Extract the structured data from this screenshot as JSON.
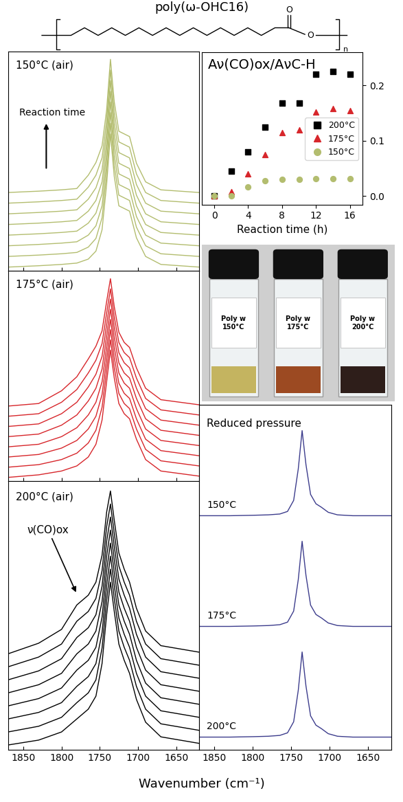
{
  "header": {
    "title": "poly(ω-OHC16)",
    "atoms": [
      "O",
      "O"
    ],
    "repeat": "n"
  },
  "figure": {
    "xlabel": "Wavenumber (cm⁻¹)"
  },
  "chart_data": [
    {
      "type": "line",
      "title": "150°C (air)",
      "annotation": "Reaction time",
      "color": "#b3bd6f",
      "x": [
        1870,
        1830,
        1800,
        1780,
        1765,
        1755,
        1747,
        1741,
        1736,
        1731,
        1725,
        1718,
        1711,
        1702,
        1690,
        1670,
        1620
      ],
      "series": [
        {
          "values": [
            0.0,
            0.01,
            0.02,
            0.03,
            0.06,
            0.12,
            0.28,
            0.62,
            1.0,
            0.68,
            0.46,
            0.44,
            0.42,
            0.22,
            0.08,
            0.02,
            0.0
          ]
        },
        {
          "values": [
            0.08,
            0.09,
            0.1,
            0.11,
            0.15,
            0.215,
            0.37,
            0.7,
            1.08,
            0.76,
            0.54,
            0.52,
            0.5,
            0.3,
            0.16,
            0.1,
            0.08
          ]
        },
        {
          "values": [
            0.16,
            0.17,
            0.18,
            0.19,
            0.24,
            0.31,
            0.46,
            0.78,
            1.16,
            0.84,
            0.62,
            0.6,
            0.58,
            0.38,
            0.24,
            0.18,
            0.16
          ]
        },
        {
          "values": [
            0.24,
            0.25,
            0.26,
            0.27,
            0.33,
            0.405,
            0.55,
            0.86,
            1.24,
            0.92,
            0.7,
            0.68,
            0.66,
            0.46,
            0.32,
            0.26,
            0.24
          ]
        },
        {
          "values": [
            0.32,
            0.33,
            0.34,
            0.35,
            0.42,
            0.5,
            0.64,
            0.94,
            1.32,
            1.0,
            0.78,
            0.76,
            0.74,
            0.54,
            0.4,
            0.34,
            0.32
          ]
        },
        {
          "values": [
            0.4,
            0.41,
            0.42,
            0.43,
            0.51,
            0.595,
            0.73,
            1.02,
            1.4,
            1.08,
            0.86,
            0.84,
            0.82,
            0.62,
            0.48,
            0.42,
            0.4
          ]
        },
        {
          "values": [
            0.48,
            0.49,
            0.5,
            0.51,
            0.6,
            0.69,
            0.82,
            1.1,
            1.48,
            1.16,
            0.94,
            0.92,
            0.9,
            0.7,
            0.56,
            0.5,
            0.48
          ]
        },
        {
          "values": [
            0.56,
            0.57,
            0.58,
            0.59,
            0.69,
            0.785,
            0.91,
            1.18,
            1.56,
            1.24,
            1.02,
            1.0,
            0.98,
            0.78,
            0.64,
            0.58,
            0.56
          ]
        }
      ],
      "xlim": [
        1870,
        1620
      ],
      "ylim": [
        -0.03,
        1.62
      ],
      "xticks": [
        1850,
        1800,
        1750,
        1700,
        1650
      ],
      "yticks": [],
      "tick_labels": false
    },
    {
      "type": "line",
      "title": "175°C (air)",
      "color": "#d7262b",
      "x": [
        1870,
        1830,
        1800,
        1780,
        1765,
        1755,
        1747,
        1741,
        1736,
        1731,
        1725,
        1718,
        1711,
        1702,
        1690,
        1670,
        1620
      ],
      "series": [
        {
          "values": [
            0.0,
            0.02,
            0.05,
            0.09,
            0.16,
            0.26,
            0.45,
            0.75,
            1.0,
            0.78,
            0.58,
            0.5,
            0.46,
            0.3,
            0.14,
            0.05,
            0.01
          ]
        },
        {
          "values": [
            0.08,
            0.1,
            0.14,
            0.19,
            0.27,
            0.37,
            0.55,
            0.84,
            1.08,
            0.86,
            0.66,
            0.58,
            0.54,
            0.38,
            0.22,
            0.13,
            0.09
          ]
        },
        {
          "values": [
            0.16,
            0.18,
            0.23,
            0.29,
            0.38,
            0.48,
            0.65,
            0.93,
            1.16,
            0.94,
            0.74,
            0.66,
            0.62,
            0.46,
            0.3,
            0.21,
            0.17
          ]
        },
        {
          "values": [
            0.24,
            0.26,
            0.32,
            0.39,
            0.49,
            0.59,
            0.75,
            1.02,
            1.24,
            1.02,
            0.82,
            0.74,
            0.7,
            0.54,
            0.38,
            0.29,
            0.25
          ]
        },
        {
          "values": [
            0.32,
            0.34,
            0.41,
            0.49,
            0.6,
            0.7,
            0.85,
            1.11,
            1.32,
            1.1,
            0.9,
            0.82,
            0.78,
            0.62,
            0.46,
            0.37,
            0.33
          ]
        },
        {
          "values": [
            0.4,
            0.42,
            0.5,
            0.59,
            0.71,
            0.81,
            0.95,
            1.2,
            1.4,
            1.18,
            0.98,
            0.9,
            0.86,
            0.7,
            0.54,
            0.45,
            0.41
          ]
        },
        {
          "values": [
            0.48,
            0.5,
            0.59,
            0.69,
            0.82,
            0.92,
            1.05,
            1.29,
            1.48,
            1.26,
            1.06,
            0.98,
            0.94,
            0.78,
            0.62,
            0.53,
            0.49
          ]
        },
        {
          "values": [
            0.56,
            0.58,
            0.68,
            0.79,
            0.93,
            1.03,
            1.15,
            1.38,
            1.56,
            1.34,
            1.14,
            1.06,
            1.02,
            0.86,
            0.7,
            0.61,
            0.57
          ]
        }
      ],
      "xlim": [
        1870,
        1620
      ],
      "ylim": [
        -0.03,
        1.62
      ],
      "xticks": [
        1850,
        1800,
        1750,
        1700,
        1650
      ],
      "yticks": [],
      "tick_labels": false
    },
    {
      "type": "line",
      "title": "200°C (air)",
      "annotation": "ν(CO)ox",
      "color": "#000000",
      "x": [
        1870,
        1830,
        1800,
        1780,
        1765,
        1755,
        1747,
        1741,
        1736,
        1731,
        1725,
        1718,
        1711,
        1702,
        1690,
        1670,
        1620
      ],
      "series": [
        {
          "values": [
            0.0,
            0.03,
            0.08,
            0.16,
            0.22,
            0.3,
            0.5,
            0.8,
            1.0,
            0.82,
            0.62,
            0.52,
            0.44,
            0.28,
            0.14,
            0.05,
            0.01
          ]
        },
        {
          "values": [
            0.08,
            0.115,
            0.17,
            0.26,
            0.32,
            0.4,
            0.595,
            0.89,
            1.08,
            0.9,
            0.7,
            0.6,
            0.52,
            0.36,
            0.22,
            0.13,
            0.09
          ]
        },
        {
          "values": [
            0.16,
            0.2,
            0.26,
            0.36,
            0.42,
            0.5,
            0.69,
            0.98,
            1.16,
            0.98,
            0.78,
            0.68,
            0.6,
            0.44,
            0.3,
            0.21,
            0.17
          ]
        },
        {
          "values": [
            0.24,
            0.285,
            0.35,
            0.46,
            0.52,
            0.6,
            0.785,
            1.07,
            1.24,
            1.06,
            0.86,
            0.76,
            0.68,
            0.52,
            0.38,
            0.29,
            0.25
          ]
        },
        {
          "values": [
            0.32,
            0.37,
            0.44,
            0.56,
            0.62,
            0.7,
            0.88,
            1.16,
            1.32,
            1.14,
            0.94,
            0.84,
            0.76,
            0.6,
            0.46,
            0.37,
            0.33
          ]
        },
        {
          "values": [
            0.4,
            0.455,
            0.53,
            0.66,
            0.72,
            0.8,
            0.975,
            1.25,
            1.4,
            1.22,
            1.02,
            0.92,
            0.84,
            0.68,
            0.54,
            0.45,
            0.41
          ]
        },
        {
          "values": [
            0.48,
            0.54,
            0.62,
            0.76,
            0.82,
            0.9,
            1.07,
            1.34,
            1.48,
            1.3,
            1.1,
            1.0,
            0.92,
            0.76,
            0.62,
            0.53,
            0.49
          ]
        },
        {
          "values": [
            0.56,
            0.625,
            0.71,
            0.86,
            0.92,
            1.0,
            1.165,
            1.43,
            1.56,
            1.38,
            1.18,
            1.08,
            1.0,
            0.84,
            0.7,
            0.61,
            0.57
          ]
        }
      ],
      "xlim": [
        1870,
        1620
      ],
      "ylim": [
        -0.03,
        1.62
      ],
      "xticks": [
        1850,
        1800,
        1750,
        1700,
        1650
      ],
      "yticks": [],
      "tick_labels": "x"
    },
    {
      "type": "scatter",
      "title": "Aν(CO)ox/AνC-H",
      "xlabel": "Reaction time (h)",
      "x": [
        0,
        2,
        4,
        6,
        8,
        10,
        12,
        14,
        16
      ],
      "series": [
        {
          "name": "200°C",
          "color": "#000000",
          "marker": "square",
          "values": [
            0,
            0.045,
            0.08,
            0.125,
            0.168,
            0.168,
            0.22,
            0.225,
            0.22
          ]
        },
        {
          "name": "175°C",
          "color": "#d7262b",
          "marker": "triangle",
          "values": [
            0,
            0.008,
            0.04,
            0.075,
            0.115,
            0.12,
            0.152,
            0.158,
            0.155
          ]
        },
        {
          "name": "150°C",
          "color": "#b3bd6f",
          "marker": "circle",
          "values": [
            0,
            0.0,
            0.017,
            0.028,
            0.03,
            0.03,
            0.031,
            0.031,
            0.031
          ]
        }
      ],
      "xlim": [
        -1.5,
        17.5
      ],
      "ylim": [
        -0.015,
        0.26
      ],
      "xticks": [
        0,
        4,
        8,
        12,
        16
      ],
      "yticks": [
        0.0,
        0.1,
        0.2
      ],
      "legend": "center right"
    },
    {
      "type": "image",
      "labels": [
        "Poly w\n150°C",
        "Poly w\n175°C",
        "Poly w\n200°C"
      ],
      "colors": [
        "#c4b460",
        "#9c4a22",
        "#2e1e1a"
      ]
    },
    {
      "type": "line",
      "title": "Reduced pressure",
      "color": "#3c3c8c",
      "x": [
        1870,
        1830,
        1800,
        1780,
        1765,
        1755,
        1747,
        1741,
        1736,
        1731,
        1725,
        1718,
        1711,
        1702,
        1690,
        1670,
        1620
      ],
      "series": [
        {
          "name": "150°C",
          "values": [
            2.6,
            2.6,
            2.605,
            2.61,
            2.62,
            2.65,
            2.78,
            3.15,
            3.6,
            3.2,
            2.85,
            2.74,
            2.7,
            2.64,
            2.61,
            2.6,
            2.6
          ]
        },
        {
          "name": "175°C",
          "values": [
            1.3,
            1.3,
            1.305,
            1.31,
            1.32,
            1.35,
            1.48,
            1.85,
            2.3,
            1.9,
            1.55,
            1.44,
            1.4,
            1.34,
            1.31,
            1.3,
            1.3
          ]
        },
        {
          "name": "200°C",
          "values": [
            0,
            0,
            0.005,
            0.01,
            0.02,
            0.05,
            0.18,
            0.55,
            1.0,
            0.6,
            0.25,
            0.14,
            0.1,
            0.04,
            0.01,
            0,
            0
          ]
        }
      ],
      "xlim": [
        1870,
        1620
      ],
      "ylim": [
        -0.15,
        3.9
      ],
      "xticks": [
        1850,
        1800,
        1750,
        1700,
        1650
      ],
      "yticks": [],
      "tick_labels": "x"
    }
  ]
}
